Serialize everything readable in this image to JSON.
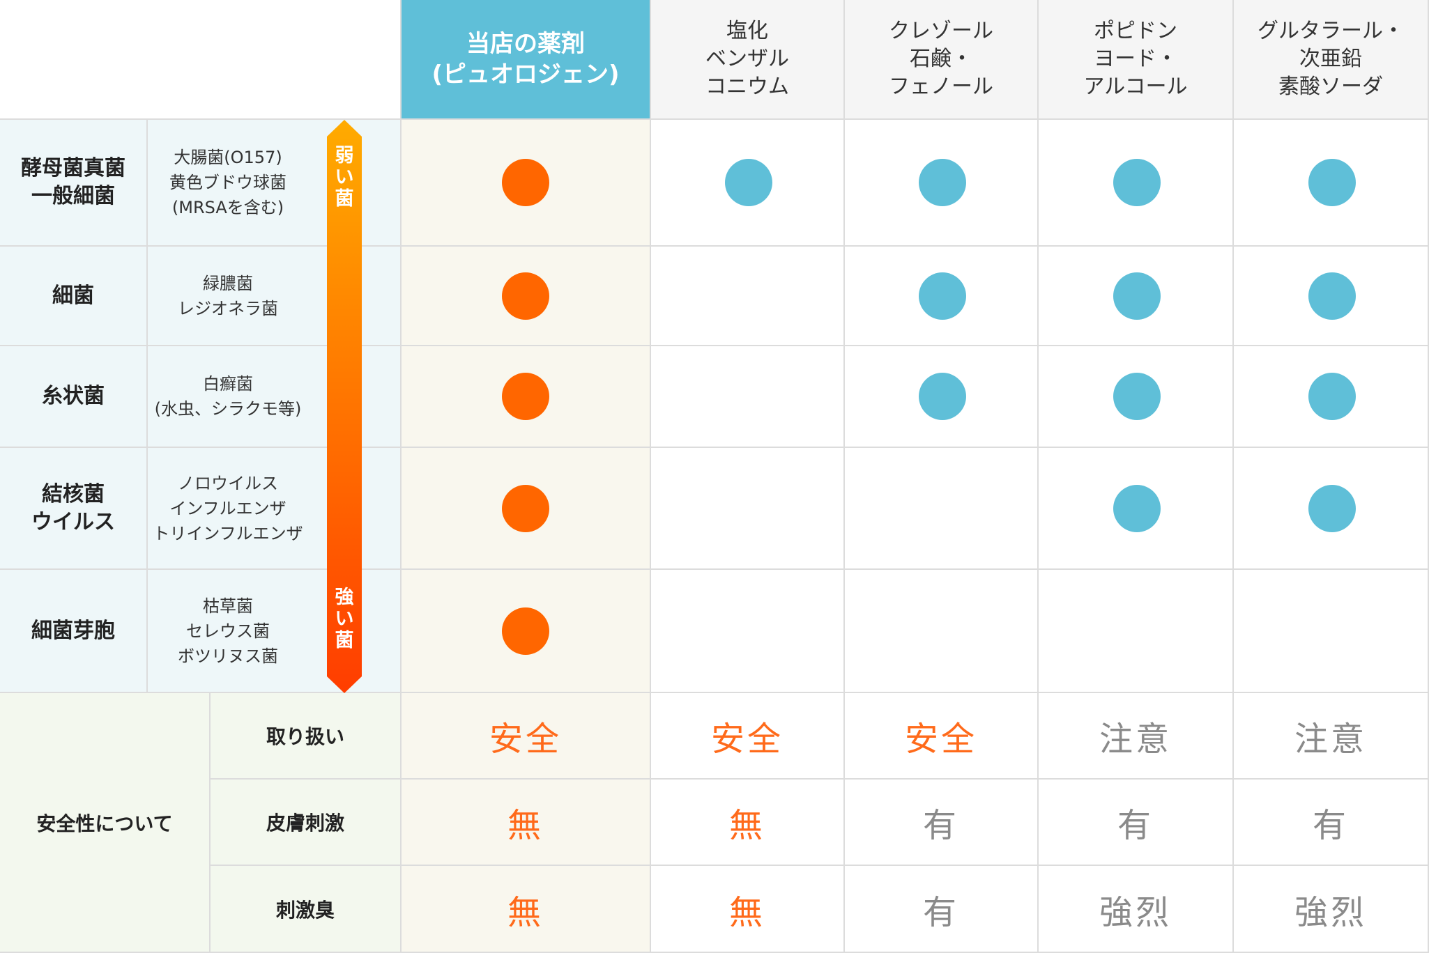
{
  "header": {
    "columns": [
      {
        "label": "当店の薬剤\n(ピュオロジェン)",
        "highlight": true
      },
      {
        "label": "塩化\nベンザル\nコニウム",
        "highlight": false
      },
      {
        "label": "クレゾール\n石鹸・\nフェノール",
        "highlight": false
      },
      {
        "label": "ポピドン\nヨード・\nアルコール",
        "highlight": false
      },
      {
        "label": "グルタラール・\n次亜鉛\n素酸ソーダ",
        "highlight": false
      }
    ]
  },
  "categories": [
    {
      "name": "酵母菌真菌\n一般細菌",
      "examples": "大腸菌(O157)\n黄色ブドウ球菌\n(MRSAを含む)",
      "effective": [
        true,
        true,
        true,
        true,
        true
      ]
    },
    {
      "name": "細菌",
      "examples": "緑膿菌\nレジオネラ菌",
      "effective": [
        true,
        false,
        true,
        true,
        true
      ]
    },
    {
      "name": "糸状菌",
      "examples": "白癬菌\n(水虫、シラクモ等)",
      "effective": [
        true,
        false,
        true,
        true,
        true
      ]
    },
    {
      "name": "結核菌\nウイルス",
      "examples": "ノロウイルス\nインフルエンザ\nトリインフルエンザ",
      "effective": [
        true,
        false,
        false,
        true,
        true
      ]
    },
    {
      "name": "細菌芽胞",
      "examples": "枯草菌\nセレウス菌\nボツリヌス菌",
      "effective": [
        true,
        false,
        false,
        false,
        false
      ]
    }
  ],
  "strength_arrow": {
    "top_label": "弱\nい\n菌",
    "bottom_label": "強\nい\n菌"
  },
  "safety": {
    "title": "安全性について",
    "rows": [
      {
        "label": "取り扱い",
        "values": [
          {
            "text": "安全",
            "tone": "orange"
          },
          {
            "text": "安全",
            "tone": "orange"
          },
          {
            "text": "安全",
            "tone": "orange"
          },
          {
            "text": "注意",
            "tone": "gray"
          },
          {
            "text": "注意",
            "tone": "gray"
          }
        ]
      },
      {
        "label": "皮膚刺激",
        "values": [
          {
            "text": "無",
            "tone": "orange"
          },
          {
            "text": "無",
            "tone": "orange"
          },
          {
            "text": "有",
            "tone": "gray"
          },
          {
            "text": "有",
            "tone": "gray"
          },
          {
            "text": "有",
            "tone": "gray"
          }
        ]
      },
      {
        "label": "刺激臭",
        "values": [
          {
            "text": "無",
            "tone": "orange"
          },
          {
            "text": "無",
            "tone": "orange"
          },
          {
            "text": "有",
            "tone": "gray"
          },
          {
            "text": "強烈",
            "tone": "gray"
          },
          {
            "text": "強烈",
            "tone": "gray"
          }
        ]
      }
    ]
  },
  "colors": {
    "header_highlight": "#5fbfd8",
    "ours_dot": "#ff6600",
    "other_dot": "#5fbfd8",
    "safe_text": "#ff6a1a",
    "caution_text": "#8a8a8a",
    "arrow_top": "#ffab00",
    "arrow_bottom": "#ff3d00"
  }
}
